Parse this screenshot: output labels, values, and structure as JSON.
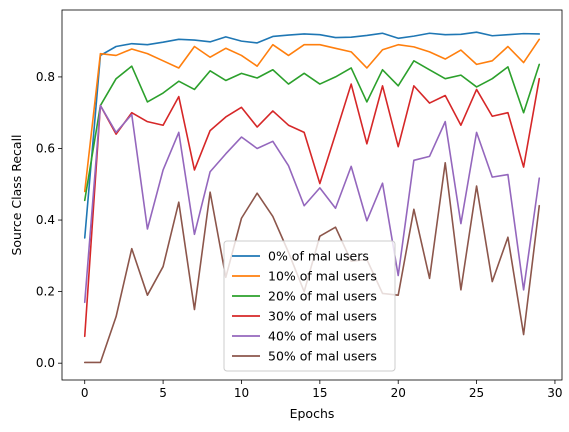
{
  "chart_data": {
    "type": "line",
    "title": "",
    "xlabel": "Epochs",
    "ylabel": "Source Class Recall",
    "xlim": [
      -1.45,
      30.45
    ],
    "ylim": [
      -0.047,
      0.987
    ],
    "xticks": [
      0,
      5,
      10,
      15,
      20,
      25,
      30
    ],
    "yticks": [
      0.0,
      0.2,
      0.4,
      0.6,
      0.8
    ],
    "ytick_labels": [
      "0.0",
      "0.2",
      "0.4",
      "0.6",
      "0.8"
    ],
    "grid": false,
    "legend_position": "lower-center",
    "x": [
      0,
      1,
      2,
      3,
      4,
      5,
      6,
      7,
      8,
      9,
      10,
      11,
      12,
      13,
      14,
      15,
      16,
      17,
      18,
      19,
      20,
      21,
      22,
      23,
      24,
      25,
      26,
      27,
      28,
      29
    ],
    "series": [
      {
        "name": "0% of mal users",
        "color": "#1f77b4",
        "values": [
          0.35,
          0.86,
          0.885,
          0.893,
          0.89,
          0.897,
          0.905,
          0.903,
          0.898,
          0.912,
          0.9,
          0.895,
          0.913,
          0.917,
          0.92,
          0.918,
          0.91,
          0.911,
          0.916,
          0.922,
          0.908,
          0.914,
          0.922,
          0.918,
          0.919,
          0.925,
          0.915,
          0.918,
          0.921,
          0.92
        ]
      },
      {
        "name": "10% of mal users",
        "color": "#ff7f0e",
        "values": [
          0.48,
          0.865,
          0.86,
          0.878,
          0.865,
          0.845,
          0.825,
          0.885,
          0.855,
          0.88,
          0.86,
          0.83,
          0.89,
          0.86,
          0.89,
          0.89,
          0.88,
          0.87,
          0.825,
          0.876,
          0.89,
          0.884,
          0.87,
          0.85,
          0.875,
          0.835,
          0.845,
          0.885,
          0.84,
          0.905
        ]
      },
      {
        "name": "20% of mal users",
        "color": "#2ca02c",
        "values": [
          0.455,
          0.72,
          0.795,
          0.83,
          0.73,
          0.755,
          0.788,
          0.765,
          0.817,
          0.79,
          0.81,
          0.797,
          0.82,
          0.78,
          0.81,
          0.78,
          0.8,
          0.825,
          0.73,
          0.82,
          0.775,
          0.845,
          0.82,
          0.795,
          0.805,
          0.772,
          0.795,
          0.828,
          0.7,
          0.835
        ]
      },
      {
        "name": "30% of mal users",
        "color": "#d62728",
        "values": [
          0.075,
          0.72,
          0.64,
          0.7,
          0.675,
          0.665,
          0.745,
          0.54,
          0.65,
          0.688,
          0.715,
          0.66,
          0.705,
          0.665,
          0.645,
          0.502,
          0.64,
          0.78,
          0.613,
          0.775,
          0.605,
          0.775,
          0.727,
          0.748,
          0.665,
          0.765,
          0.69,
          0.7,
          0.548,
          0.795
        ]
      },
      {
        "name": "40% of mal users",
        "color": "#9467bd",
        "values": [
          0.17,
          0.72,
          0.645,
          0.695,
          0.375,
          0.54,
          0.645,
          0.36,
          0.535,
          0.585,
          0.632,
          0.6,
          0.62,
          0.552,
          0.44,
          0.49,
          0.433,
          0.55,
          0.398,
          0.503,
          0.245,
          0.567,
          0.578,
          0.675,
          0.39,
          0.645,
          0.52,
          0.527,
          0.205,
          0.517
        ]
      },
      {
        "name": "50% of mal users",
        "color": "#8c564b",
        "values": [
          0.002,
          0.002,
          0.13,
          0.32,
          0.19,
          0.27,
          0.45,
          0.15,
          0.478,
          0.24,
          0.405,
          0.475,
          0.41,
          0.31,
          0.2,
          0.355,
          0.38,
          0.285,
          0.29,
          0.195,
          0.19,
          0.43,
          0.237,
          0.56,
          0.205,
          0.495,
          0.228,
          0.352,
          0.08,
          0.44
        ]
      }
    ]
  }
}
